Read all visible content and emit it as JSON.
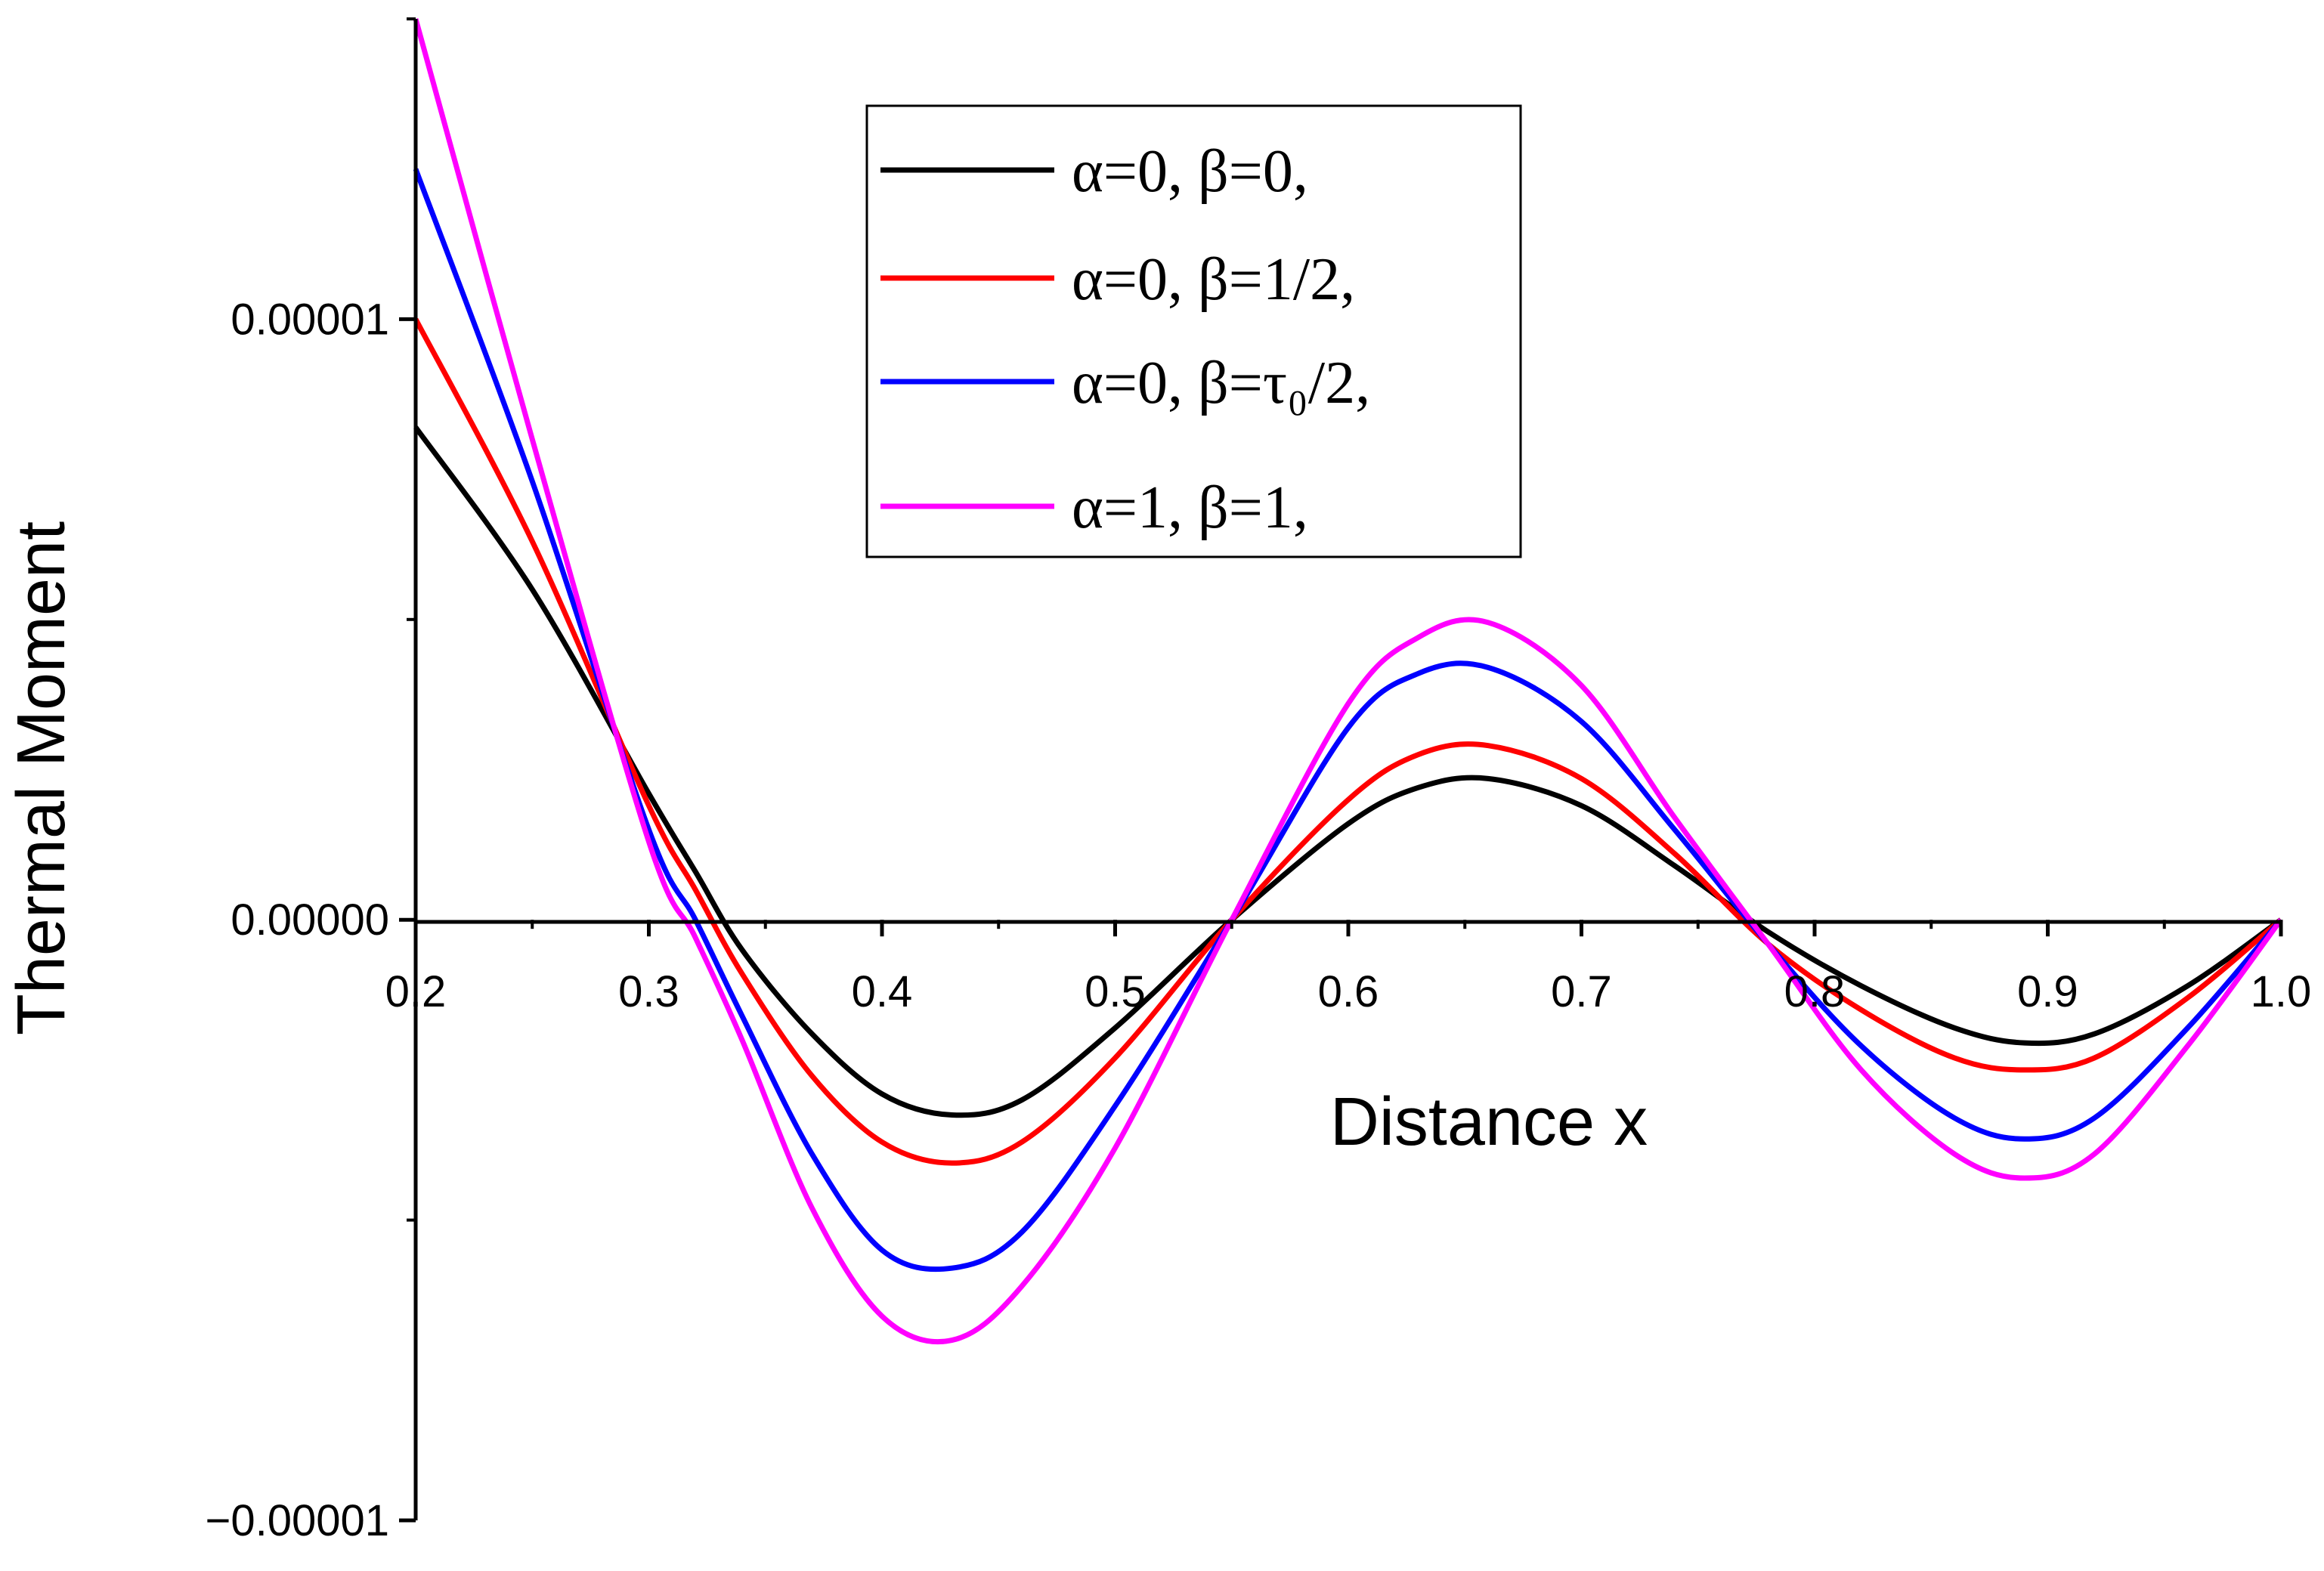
{
  "chart_data": {
    "type": "line",
    "title": "",
    "xlabel": "Distance x",
    "ylabel": "Thermal Moment",
    "xlim": [
      0.2,
      1.0
    ],
    "ylim": [
      -1e-05,
      1.5e-05
    ],
    "grid": false,
    "legend_position": "top-center",
    "x_ticks": [
      0.2,
      0.3,
      0.4,
      0.5,
      0.6,
      0.7,
      0.8,
      0.9,
      1.0
    ],
    "x_tick_labels": [
      "0.2",
      "0.3",
      "0.4",
      "0.5",
      "0.6",
      "0.7",
      "0.8",
      "0.9",
      "1.0"
    ],
    "y_ticks": [
      -1e-05,
      0.0,
      1e-05
    ],
    "y_tick_labels": [
      "−0.00001",
      "0.00000",
      "0.00001"
    ],
    "y_minor_ticks": [
      -5e-06,
      5e-06
    ],
    "x": [
      0.2,
      0.25,
      0.3,
      0.32,
      0.34,
      0.37,
      0.4,
      0.43,
      0.46,
      0.5,
      0.55,
      0.6,
      0.63,
      0.66,
      0.7,
      0.74,
      0.78,
      0.82,
      0.86,
      0.89,
      0.92,
      0.96,
      1.0
    ],
    "series": [
      {
        "name": "α=0, β=0,",
        "color": "#000000",
        "values": [
          8.2e-06,
          5.5e-06,
          2.1e-06,
          8e-07,
          -5e-07,
          -1.9e-06,
          -2.9e-06,
          -3.25e-06,
          -3e-06,
          -1.8e-06,
          0.0,
          1.6e-06,
          2.2e-06,
          2.35e-06,
          1.9e-06,
          9e-07,
          -2e-07,
          -1.1e-06,
          -1.8e-06,
          -2.05e-06,
          -1.9e-06,
          -1.1e-06,
          0.0
        ]
      },
      {
        "name": "α=0, β=1/2,",
        "color": "#ff0000",
        "values": [
          1e-05,
          6.3e-06,
          1.9e-06,
          5e-07,
          -9e-07,
          -2.6e-06,
          -3.7e-06,
          -4.05e-06,
          -3.7e-06,
          -2.3e-06,
          0.0,
          2e-06,
          2.75e-06,
          2.9e-06,
          2.35e-06,
          1.1e-06,
          -4e-07,
          -1.5e-06,
          -2.3e-06,
          -2.5e-06,
          -2.3e-06,
          -1.3e-06,
          0.0
        ]
      },
      {
        "name": "α=0, β=τ₀/2,",
        "color": "#0000ff",
        "values": [
          1.25e-05,
          7.3e-06,
          1.5e-06,
          0.0,
          -1.6e-06,
          -3.9e-06,
          -5.5e-06,
          -5.8e-06,
          -5.2e-06,
          -3.1e-06,
          0.0,
          3.2e-06,
          4.1e-06,
          4.2e-06,
          3.3e-06,
          1.5e-06,
          -4e-07,
          -2.1e-06,
          -3.3e-06,
          -3.65e-06,
          -3.3e-06,
          -1.8e-06,
          0.0
        ]
      },
      {
        "name": "α=1, β=1,",
        "color": "#ff00ff",
        "values": [
          1.5e-05,
          8e-06,
          1.3e-06,
          -3e-07,
          -2e-06,
          -4.8e-06,
          -6.6e-06,
          -7e-06,
          -6.1e-06,
          -3.8e-06,
          0.0,
          3.6e-06,
          4.7e-06,
          4.95e-06,
          3.9e-06,
          1.7e-06,
          -4e-07,
          -2.5e-06,
          -3.9e-06,
          -4.3e-06,
          -3.9e-06,
          -2.1e-06,
          0.0
        ]
      }
    ]
  }
}
